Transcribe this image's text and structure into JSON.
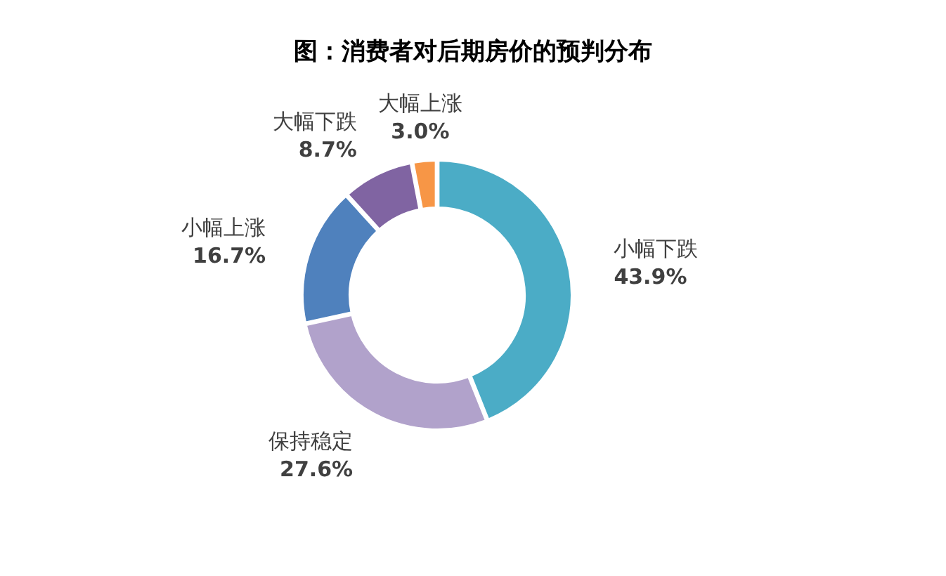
{
  "chart_data": {
    "type": "donut",
    "title": "图：消费者对后期房价的预判分布",
    "categories": [
      "小幅下跌",
      "保持稳定",
      "小幅上涨",
      "大幅下跌",
      "大幅上涨"
    ],
    "values": [
      43.9,
      27.6,
      16.7,
      8.7,
      3.0
    ],
    "value_labels": [
      "43.9%",
      "27.6%",
      "16.7%",
      "8.7%",
      "3.0%"
    ],
    "colors": [
      "#4bacc6",
      "#b1a2cb",
      "#4f81bd",
      "#8064a2",
      "#f79646"
    ]
  }
}
